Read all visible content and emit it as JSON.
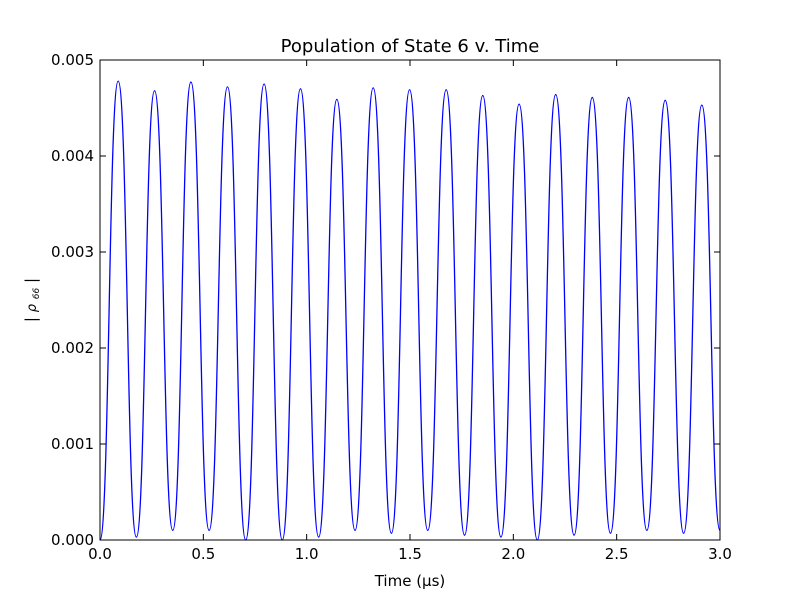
{
  "chart_data": {
    "type": "line",
    "title": "Population of State 6 v. Time",
    "xlabel": "Time (μs)",
    "ylabel": {
      "lead": "|",
      "symbol": "ρ",
      "subscript": "66",
      "trail": "|"
    },
    "xlim": [
      0.0,
      3.0
    ],
    "ylim": [
      0.0,
      0.005
    ],
    "x_ticks": [
      0.0,
      0.5,
      1.0,
      1.5,
      2.0,
      2.5,
      3.0
    ],
    "x_tick_labels": [
      "0.0",
      "0.5",
      "1.0",
      "1.5",
      "2.0",
      "2.5",
      "3.0"
    ],
    "y_ticks": [
      0.0,
      0.001,
      0.002,
      0.003,
      0.004,
      0.005
    ],
    "y_tick_labels": [
      "0.000",
      "0.001",
      "0.002",
      "0.003",
      "0.004",
      "0.005"
    ],
    "grid": false,
    "legend": "none",
    "series": [
      {
        "color": "#0000ff",
        "x": [
          0.0,
          0.088,
          0.176,
          0.264,
          0.352,
          0.44,
          0.528,
          0.617,
          0.705,
          0.794,
          0.882,
          0.97,
          1.058,
          1.146,
          1.234,
          1.322,
          1.41,
          1.498,
          1.586,
          1.675,
          1.764,
          1.852,
          1.94,
          2.028,
          2.116,
          2.205,
          2.294,
          2.382,
          2.47,
          2.558,
          2.646,
          2.735,
          2.824,
          2.912,
          3.0
        ],
        "y": [
          0.0,
          0.00478,
          3e-05,
          0.00468,
          0.0001,
          0.00477,
          0.0001,
          0.00472,
          0.0,
          0.00475,
          0.0,
          0.0047,
          3e-05,
          0.00459,
          0.0001,
          0.00471,
          7e-05,
          0.00469,
          0.0001,
          0.00469,
          5e-05,
          0.00463,
          3e-05,
          0.00454,
          0.0,
          0.00464,
          5e-05,
          0.00461,
          7e-05,
          0.00461,
          0.0001,
          0.00458,
          7e-05,
          0.00453,
          0.0001
        ]
      }
    ]
  }
}
